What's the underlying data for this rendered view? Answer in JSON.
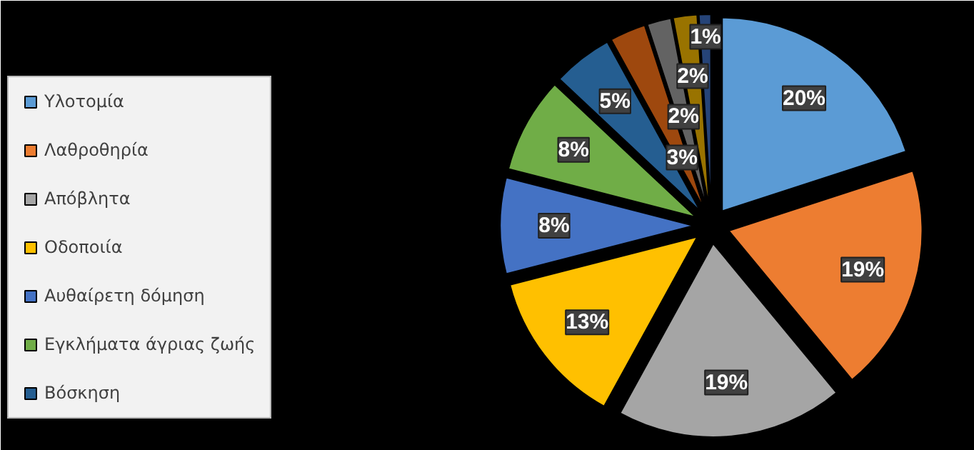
{
  "chart_data": {
    "type": "pie",
    "categories": [
      "Υλοτομία",
      "Λαθροθηρία",
      "Απόβλητα",
      "Οδοποιία",
      "Αυθαίρετη δόμηση",
      "Εγκλήματα άγριας ζωής",
      "Βόσκηση",
      null,
      null,
      null,
      null
    ],
    "values": [
      20,
      19,
      19,
      13,
      8,
      8,
      5,
      3,
      2,
      2,
      1
    ],
    "colors": [
      "#5b9bd5",
      "#ed7d31",
      "#a5a5a5",
      "#ffc000",
      "#4472c4",
      "#70ad47",
      "#255e91",
      "#9e480e",
      "#636363",
      "#997300",
      "#264478"
    ],
    "value_labels": [
      "20%",
      "19%",
      "19%",
      "13%",
      "8%",
      "8%",
      "5%",
      "3%",
      "2%",
      "2%",
      "1%"
    ],
    "legend": "left"
  }
}
